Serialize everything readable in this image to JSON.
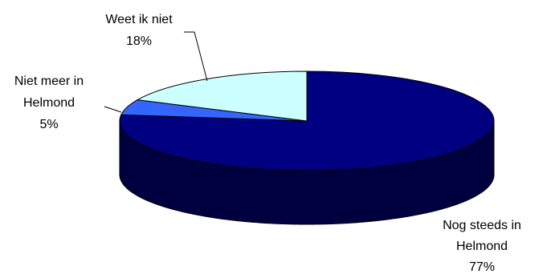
{
  "chart_data": {
    "type": "pie",
    "title": "",
    "three_d": true,
    "start_angle_deg": 90,
    "direction": "clockwise",
    "slices": [
      {
        "label_lines": [
          "Nog steeds in",
          "Helmond"
        ],
        "value": 77,
        "value_label": "77%",
        "color": "#000080"
      },
      {
        "label_lines": [
          "Niet meer in",
          "Helmond"
        ],
        "value": 5,
        "value_label": "5%",
        "color": "#3366ff"
      },
      {
        "label_lines": [
          "Weet ik niet"
        ],
        "value": 18,
        "value_label": "18%",
        "color": "#ccffff"
      }
    ],
    "legend": "none"
  }
}
